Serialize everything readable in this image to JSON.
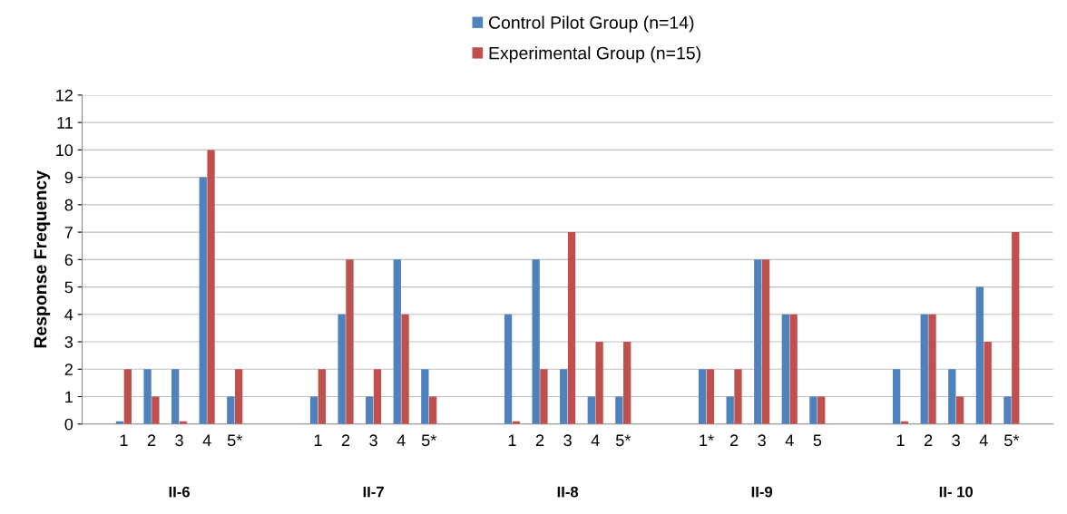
{
  "chart_data": {
    "type": "bar",
    "ylabel": "Response Frequency",
    "categories": [
      null,
      "1",
      "2",
      "3",
      "4",
      "5*",
      null,
      null,
      "1",
      "2",
      "3",
      "4",
      "5*",
      null,
      null,
      "1",
      "2",
      "3",
      "4",
      "5*",
      null,
      null,
      "1*",
      "2",
      "3",
      "4",
      "5",
      null,
      null,
      "1",
      "2",
      "3",
      "4",
      "5*",
      null
    ],
    "series": [
      {
        "name": "Control Pilot Group (n=14)",
        "color": "#4f81bd",
        "values": [
          null,
          0.1,
          2,
          2,
          9,
          1,
          null,
          null,
          1,
          4,
          1,
          6,
          2,
          null,
          null,
          4,
          6,
          2,
          1,
          1,
          null,
          null,
          2,
          1,
          6,
          4,
          1,
          null,
          null,
          2,
          4,
          2,
          5,
          1,
          null
        ]
      },
      {
        "name": "Experimental Group (n=15)",
        "color": "#c0504d",
        "values": [
          null,
          2,
          1,
          0.1,
          10,
          2,
          null,
          null,
          2,
          6,
          2,
          4,
          1,
          null,
          null,
          0.1,
          2,
          7,
          3,
          3,
          null,
          null,
          2,
          2,
          6,
          4,
          1,
          null,
          null,
          0.1,
          4,
          1,
          3,
          7,
          null
        ]
      }
    ],
    "ylim": [
      0,
      12
    ],
    "yticks": [
      0,
      1,
      2,
      3,
      4,
      5,
      6,
      7,
      8,
      9,
      10,
      11,
      12
    ],
    "grid": "y",
    "legend": "top",
    "annotations": [
      "II-6",
      "II-7",
      "II-8",
      "II-9",
      "II- 10"
    ]
  }
}
